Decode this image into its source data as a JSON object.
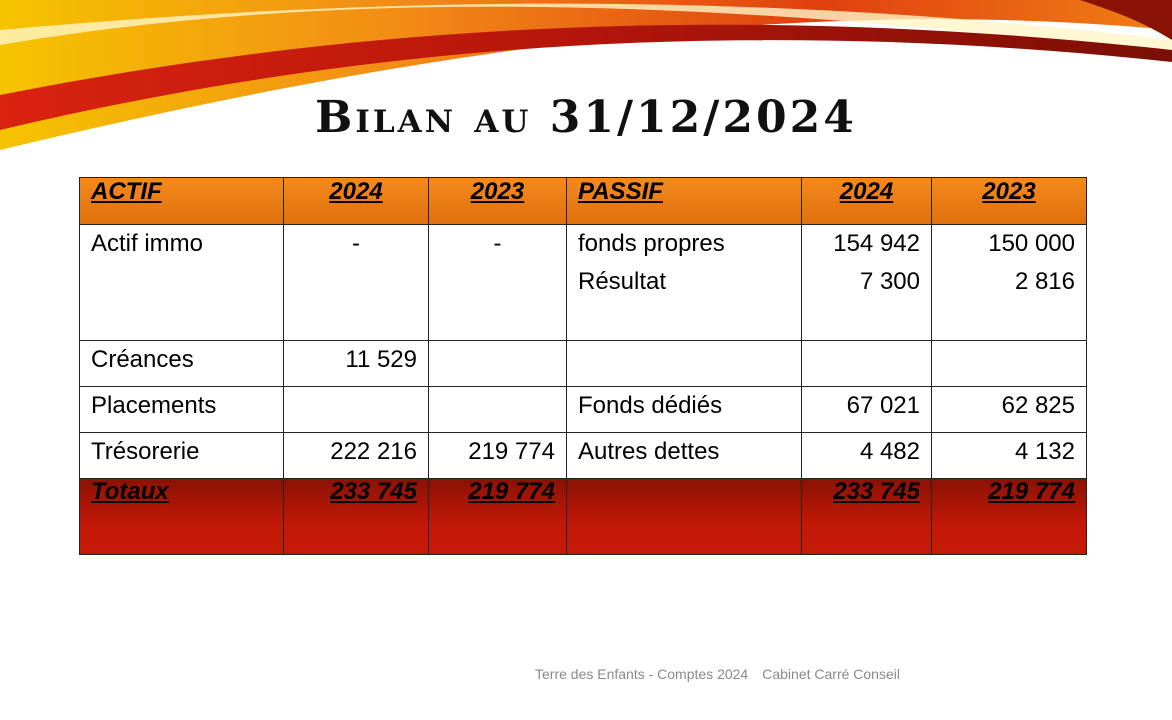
{
  "title": "Bilan au 31/12/2024",
  "table": {
    "headers": [
      "ACTIF",
      "2024",
      "2023",
      "PASSIF",
      "2024",
      "2023"
    ],
    "rows": [
      {
        "actif": "Actif immo",
        "a2024": "-",
        "a2023": "-",
        "passif": [
          "fonds propres",
          "Résultat"
        ],
        "p2024": [
          "154 942",
          "7 300"
        ],
        "p2023": [
          "150 000",
          "2 816"
        ]
      },
      {
        "actif": "Créances",
        "a2024": "11 529",
        "a2023": "",
        "passif": "",
        "p2024": "",
        "p2023": ""
      },
      {
        "actif": "Placements",
        "a2024": "",
        "a2023": "",
        "passif": "Fonds dédiés",
        "p2024": "67 021",
        "p2023": "62 825"
      },
      {
        "actif": "Trésorerie",
        "a2024": "222 216",
        "a2023": "219 774",
        "passif": "Autres dettes",
        "p2024": "4 482",
        "p2023": "4 132"
      }
    ],
    "totals": {
      "label": "Totaux",
      "a2024": "233 745",
      "a2023": "219 774",
      "passif": "",
      "p2024": "233 745",
      "p2023": "219 774"
    }
  },
  "footer": {
    "left": "Terre des Enfants - Comptes 2024",
    "right": "Cabinet Carré Conseil"
  },
  "colors": {
    "header": "#f07f16",
    "totals": "#c21807",
    "swoosh": [
      "#f5c400",
      "#f07f16",
      "#d9230f",
      "#8a1205"
    ]
  }
}
